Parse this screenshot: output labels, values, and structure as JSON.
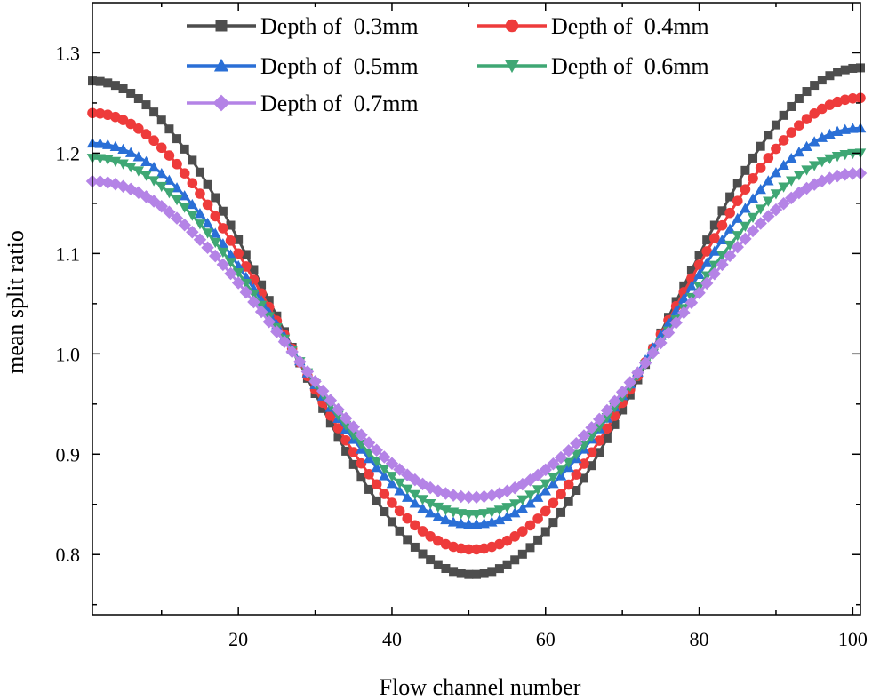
{
  "chart_data": {
    "type": "line",
    "title": "",
    "xlabel": "Flow channel number",
    "ylabel": "mean split ratio",
    "xlim": [
      1,
      101
    ],
    "ylim": [
      0.74,
      1.35
    ],
    "x_ticks": [
      20,
      40,
      60,
      80,
      100
    ],
    "x_tick_labels": [
      "20",
      "40",
      "60",
      "80",
      "100"
    ],
    "y_ticks": [
      0.8,
      0.9,
      1.0,
      1.1,
      1.2,
      1.3
    ],
    "y_tick_labels": [
      "0.8",
      "0.9",
      "1.0",
      "1.1",
      "1.2",
      "1.3"
    ],
    "grid": false,
    "legend_position": "top-center",
    "x": {
      "start": 1,
      "end": 101,
      "step": 1
    },
    "series": [
      {
        "name": "Depth of  0.3mm",
        "color": "#4d4d4d",
        "marker": "square",
        "min_channel": 50.5,
        "values_at": {
          "x": [
            1,
            25,
            50,
            75,
            101
          ],
          "y": [
            1.272,
            0.985,
            0.78,
            0.99,
            1.285
          ]
        }
      },
      {
        "name": "Depth of  0.4mm",
        "color": "#ee3b3b",
        "marker": "circle",
        "min_channel": 50.5,
        "values_at": {
          "x": [
            1,
            25,
            50,
            75,
            101
          ],
          "y": [
            1.24,
            0.985,
            0.805,
            0.99,
            1.255
          ]
        }
      },
      {
        "name": "Depth of  0.5mm",
        "color": "#2a6fd6",
        "marker": "triangle-up",
        "min_channel": 50.5,
        "values_at": {
          "x": [
            1,
            25,
            50,
            75,
            101
          ],
          "y": [
            1.21,
            0.985,
            0.83,
            0.99,
            1.225
          ]
        }
      },
      {
        "name": "Depth of  0.6mm",
        "color": "#3fa774",
        "marker": "triangle-down",
        "min_channel": 50.5,
        "values_at": {
          "x": [
            1,
            25,
            50,
            75,
            101
          ],
          "y": [
            1.195,
            0.985,
            0.84,
            0.99,
            1.2
          ]
        }
      },
      {
        "name": "Depth of  0.7mm",
        "color": "#b483e6",
        "marker": "diamond",
        "min_channel": 50.5,
        "values_at": {
          "x": [
            1,
            25,
            50,
            75,
            101
          ],
          "y": [
            1.172,
            0.985,
            0.857,
            0.99,
            1.18
          ]
        }
      }
    ]
  }
}
